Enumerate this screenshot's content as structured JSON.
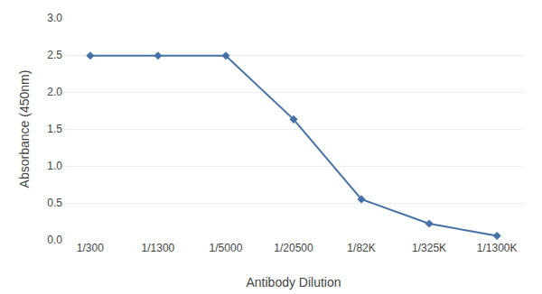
{
  "chart_data": {
    "type": "line",
    "xlabel": "Antibody Dilution",
    "ylabel": "Absorbance (450nm)",
    "categories": [
      "1/300",
      "1/1300",
      "1/5000",
      "1/20500",
      "1/82K",
      "1/325K",
      "1/1300K"
    ],
    "values": [
      2.49,
      2.49,
      2.49,
      1.63,
      0.55,
      0.22,
      0.055
    ],
    "color": "#4472a8",
    "marker": "diamond",
    "ylim": [
      0,
      3
    ],
    "yticks": [
      {
        "value": 0,
        "label": "0.0"
      },
      0.5,
      {
        "value": 1,
        "label": "1.0"
      },
      1.5,
      {
        "value": 2,
        "label": "2.0"
      },
      2.5,
      {
        "value": 3,
        "label": "3.0"
      }
    ],
    "grid": true
  }
}
